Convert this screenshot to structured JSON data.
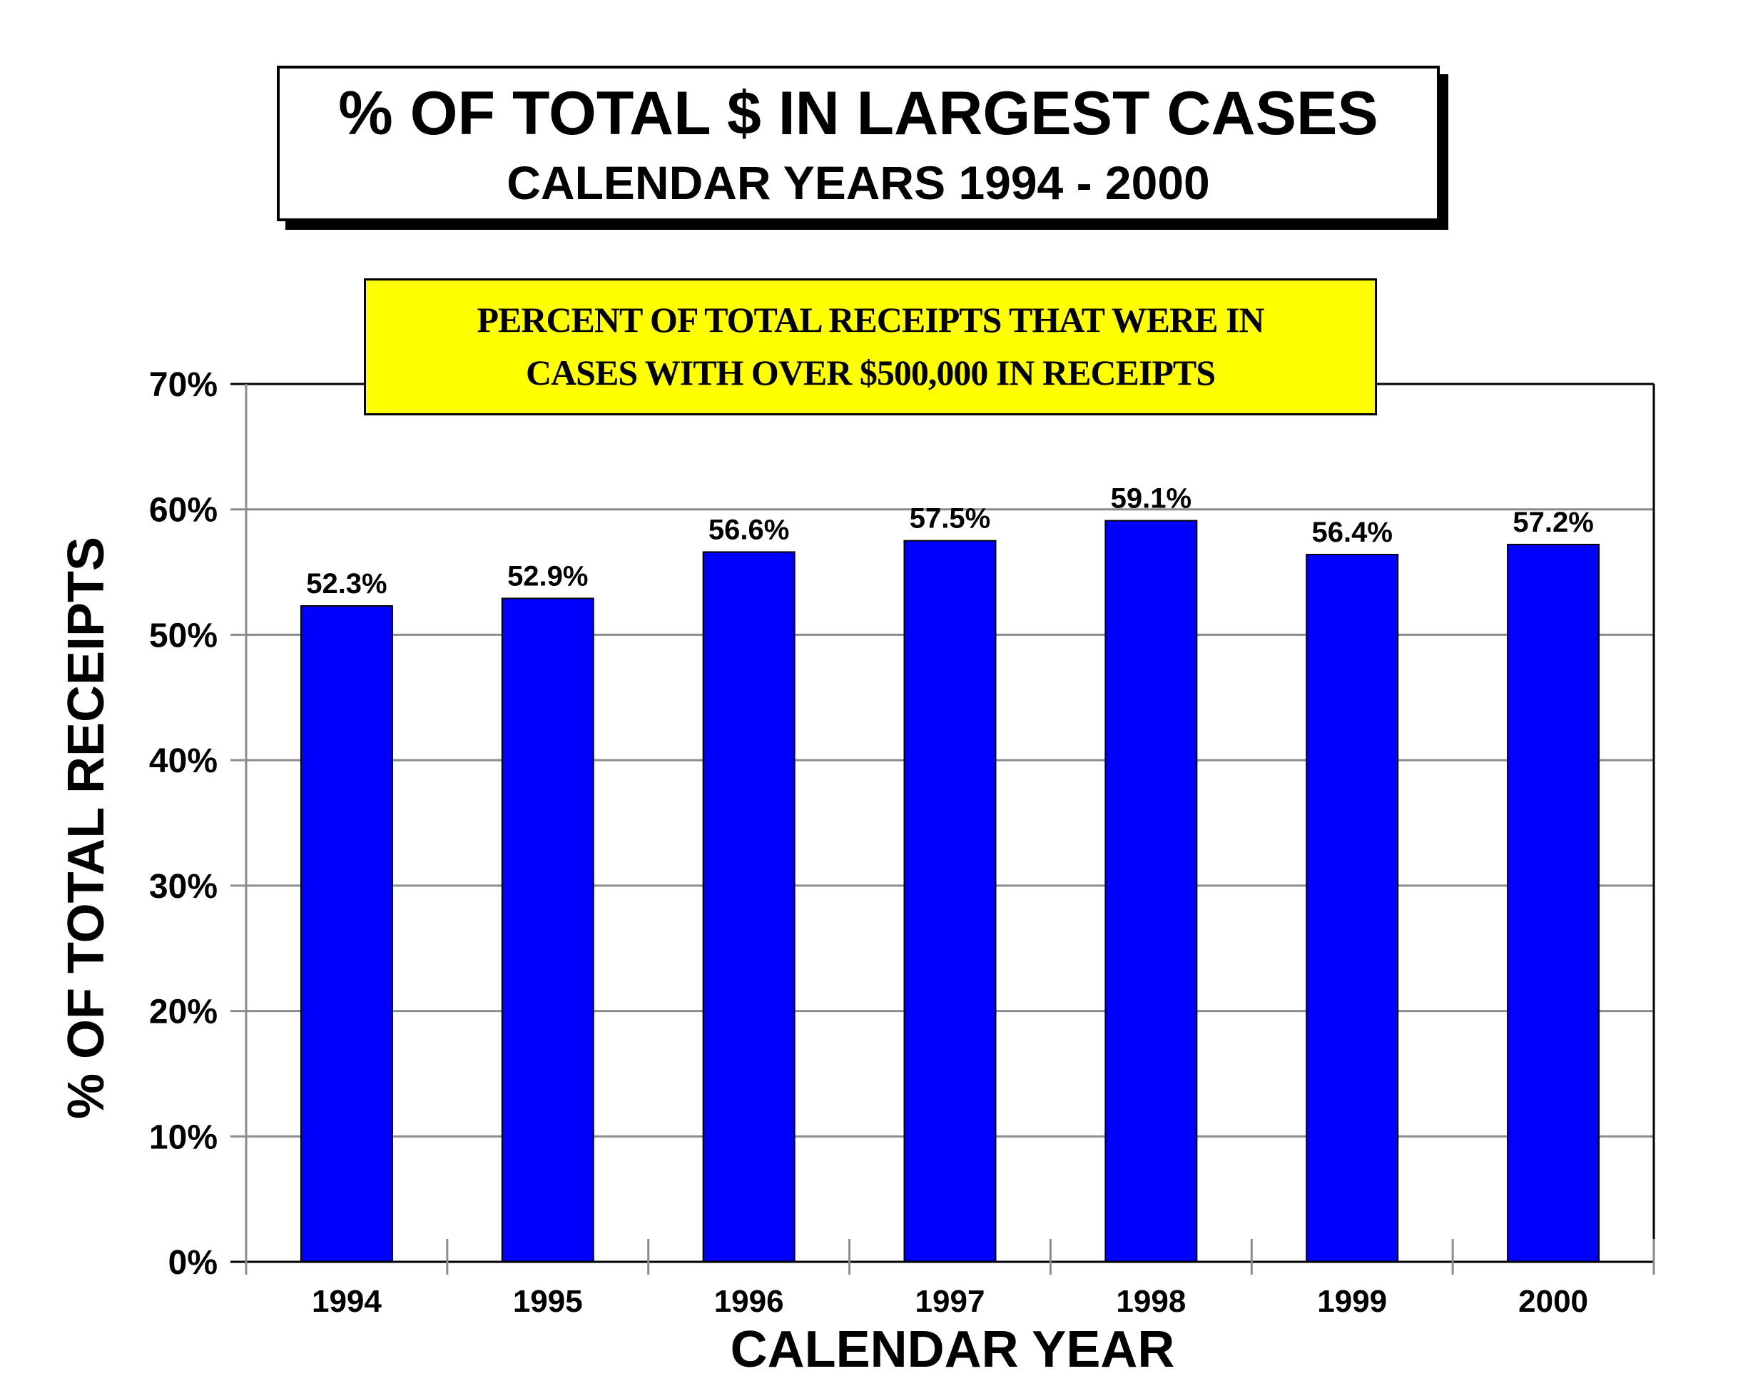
{
  "header": {
    "title": "% OF TOTAL $ IN LARGEST CASES",
    "subtitle": "CALENDAR YEARS 1994 - 2000"
  },
  "annotation": {
    "line1": "PERCENT OF TOTAL RECEIPTS THAT WERE  IN",
    "line2": "CASES WITH OVER $500,000 IN RECEIPTS",
    "background_color": "#ffff00"
  },
  "chart_data": {
    "type": "bar",
    "title": "% OF TOTAL $ IN LARGEST CASES",
    "subtitle": "CALENDAR YEARS 1994 - 2000",
    "xlabel": "CALENDAR YEAR",
    "ylabel": "% OF TOTAL RECEIPTS",
    "categories": [
      "1994",
      "1995",
      "1996",
      "1997",
      "1998",
      "1999",
      "2000"
    ],
    "values": [
      52.3,
      52.9,
      56.6,
      57.5,
      59.1,
      56.4,
      57.2
    ],
    "data_labels": [
      "52.3%",
      "52.9%",
      "56.6%",
      "57.5%",
      "59.1%",
      "56.4%",
      "57.2%"
    ],
    "ylim": [
      0,
      70
    ],
    "y_ticks": [
      0,
      10,
      20,
      30,
      40,
      50,
      60,
      70
    ],
    "y_tick_labels": [
      "0%",
      "10%",
      "20%",
      "30%",
      "40%",
      "50%",
      "60%",
      "70%"
    ],
    "grid": true,
    "legend": "none",
    "bar_color": "#0000ff",
    "grid_color": "#8c8c8c"
  }
}
